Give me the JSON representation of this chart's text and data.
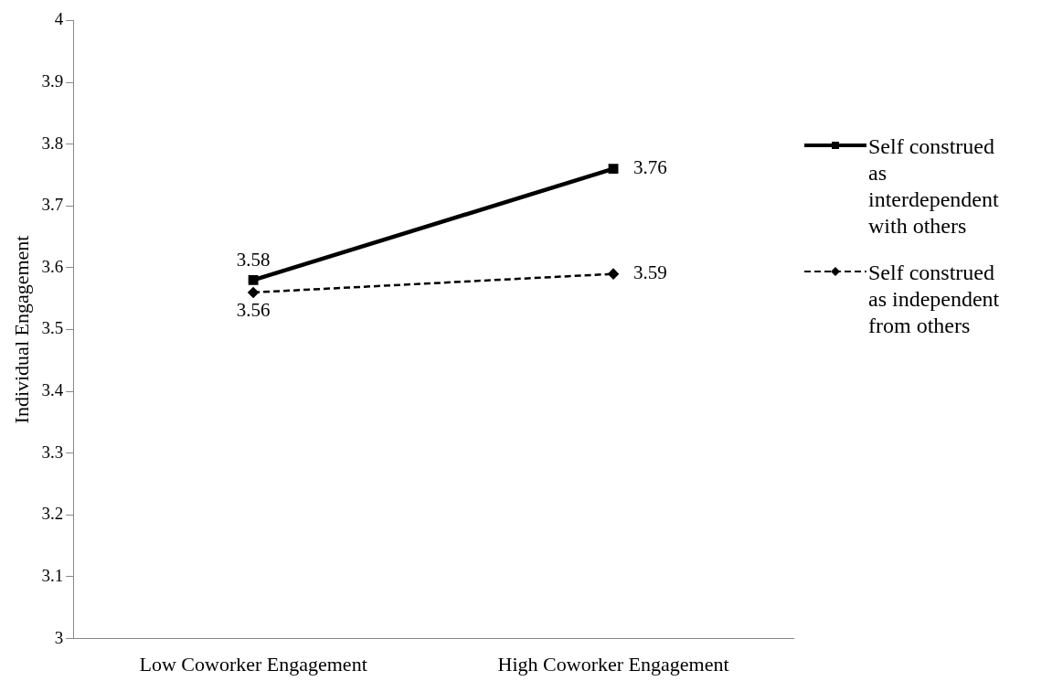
{
  "chart_data": {
    "type": "line",
    "ylabel": "Individual Engagement",
    "categories": [
      "Low Coworker Engagement",
      "High Coworker Engagement"
    ],
    "series": [
      {
        "name": "Self construed as interdependent with others",
        "color": "#000000",
        "values": [
          3.58,
          3.76
        ],
        "marker": "square",
        "line_style": "solid"
      },
      {
        "name": "Self construed as independent from others",
        "color": "#000000",
        "values": [
          3.56,
          3.59
        ],
        "marker": "diamond",
        "line_style": "dashed"
      }
    ],
    "ylim": [
      3,
      4
    ],
    "yticks": [
      3,
      3.1,
      3.2,
      3.3,
      3.4,
      3.5,
      3.6,
      3.7,
      3.8,
      3.9,
      4
    ],
    "grid": false,
    "legend": "right",
    "data_labels": true
  }
}
